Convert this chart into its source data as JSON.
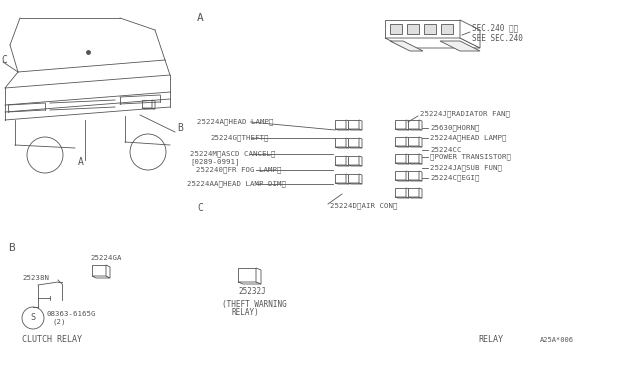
{
  "bg_color": "#ffffff",
  "gray": "#555555",
  "sec240_line1": "SEC.240 参照",
  "sec240_line2": "SEE SEC.240",
  "left_labels": [
    "25224A〈HEAD LAMP〉",
    "25224G〈THEFT〉",
    "25224M〈ASCD CANCEL〉",
    "[0289-0991]",
    "252240〈FR FOG LAMP〉",
    "25224AA〈HEAD LAMP DIM〉"
  ],
  "right_labels_top": "25224J〈RADIATOR FAN〉",
  "right_labels": [
    "25630〈HORN〉",
    "25224A〈HEAD LAMP〉",
    "25224CC",
    "〈POWER TRANSISTOR〉",
    "25224JA〈SUB FUN〉",
    "25224C〈EGI〉"
  ],
  "bottom_center_label": "25224D〈AIR CON〉",
  "part_B_relay": "25224GA",
  "part_B_sensor": "25238N",
  "part_B_screw": "08363-6165G",
  "part_B_screw2": "(2)",
  "part_B_title": "CLUTCH RELAY",
  "part_C_part": "25232J",
  "part_C_line1": "(THEFT WARNING",
  "part_C_line2": "RELAY)",
  "bottom_relay_label": "RELAY",
  "bottom_part_num": "A25A*006"
}
